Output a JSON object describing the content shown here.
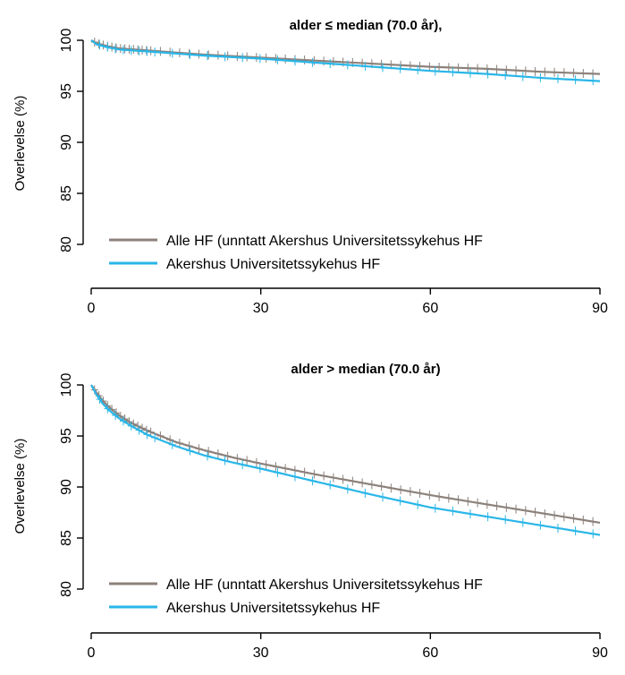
{
  "chart_data": [
    {
      "type": "line",
      "title": "alder ≤ median (70.0 år),",
      "xlabel": "",
      "ylabel": "Overlevelse (%)",
      "xlim": [
        0,
        90
      ],
      "ylim": [
        80,
        100
      ],
      "x_ticks": [
        "0",
        "30",
        "60",
        "90"
      ],
      "y_ticks": [
        "80",
        "85",
        "90",
        "95",
        "100"
      ],
      "legend_position": "bottom-left",
      "series": [
        {
          "name": "Alle HF (unntatt Akershus Universitetssykehus HF",
          "color": "#8c817b",
          "x": [
            0,
            1,
            3,
            5,
            10,
            15,
            20,
            30,
            40,
            50,
            60,
            70,
            80,
            90
          ],
          "y": [
            100,
            99.7,
            99.4,
            99.2,
            99.0,
            98.8,
            98.6,
            98.3,
            98.0,
            97.7,
            97.4,
            97.2,
            96.9,
            96.7
          ]
        },
        {
          "name": "Akershus Universitetssykehus HF",
          "color": "#29b6e8",
          "x": [
            0,
            1,
            3,
            5,
            10,
            15,
            20,
            30,
            40,
            50,
            60,
            70,
            80,
            90
          ],
          "y": [
            100,
            99.6,
            99.3,
            99.1,
            98.9,
            98.7,
            98.5,
            98.2,
            97.8,
            97.4,
            97.0,
            96.7,
            96.3,
            96.0
          ]
        }
      ]
    },
    {
      "type": "line",
      "title": "alder > median (70.0 år)",
      "xlabel": "",
      "ylabel": "Overlevelse (%)",
      "xlim": [
        0,
        90
      ],
      "ylim": [
        80,
        100
      ],
      "x_ticks": [
        "0",
        "30",
        "60",
        "90"
      ],
      "y_ticks": [
        "80",
        "85",
        "90",
        "95",
        "100"
      ],
      "legend_position": "bottom-left",
      "series": [
        {
          "name": "Alle HF (unntatt Akershus Universitetssykehus HF",
          "color": "#8c817b",
          "x": [
            0,
            1,
            2,
            3,
            5,
            7,
            10,
            15,
            20,
            25,
            30,
            40,
            50,
            60,
            70,
            80,
            90
          ],
          "y": [
            100,
            99.2,
            98.5,
            97.9,
            97.0,
            96.3,
            95.5,
            94.4,
            93.6,
            92.9,
            92.3,
            91.2,
            90.2,
            89.2,
            88.3,
            87.4,
            86.5
          ]
        },
        {
          "name": "Akershus Universitetssykehus HF",
          "color": "#29b6e8",
          "x": [
            0,
            1,
            2,
            3,
            5,
            7,
            10,
            15,
            20,
            25,
            30,
            40,
            50,
            60,
            70,
            80,
            90
          ],
          "y": [
            100,
            99.0,
            98.2,
            97.6,
            96.7,
            96.0,
            95.1,
            94.0,
            93.1,
            92.4,
            91.8,
            90.5,
            89.2,
            88.0,
            87.1,
            86.2,
            85.3
          ]
        }
      ]
    }
  ]
}
